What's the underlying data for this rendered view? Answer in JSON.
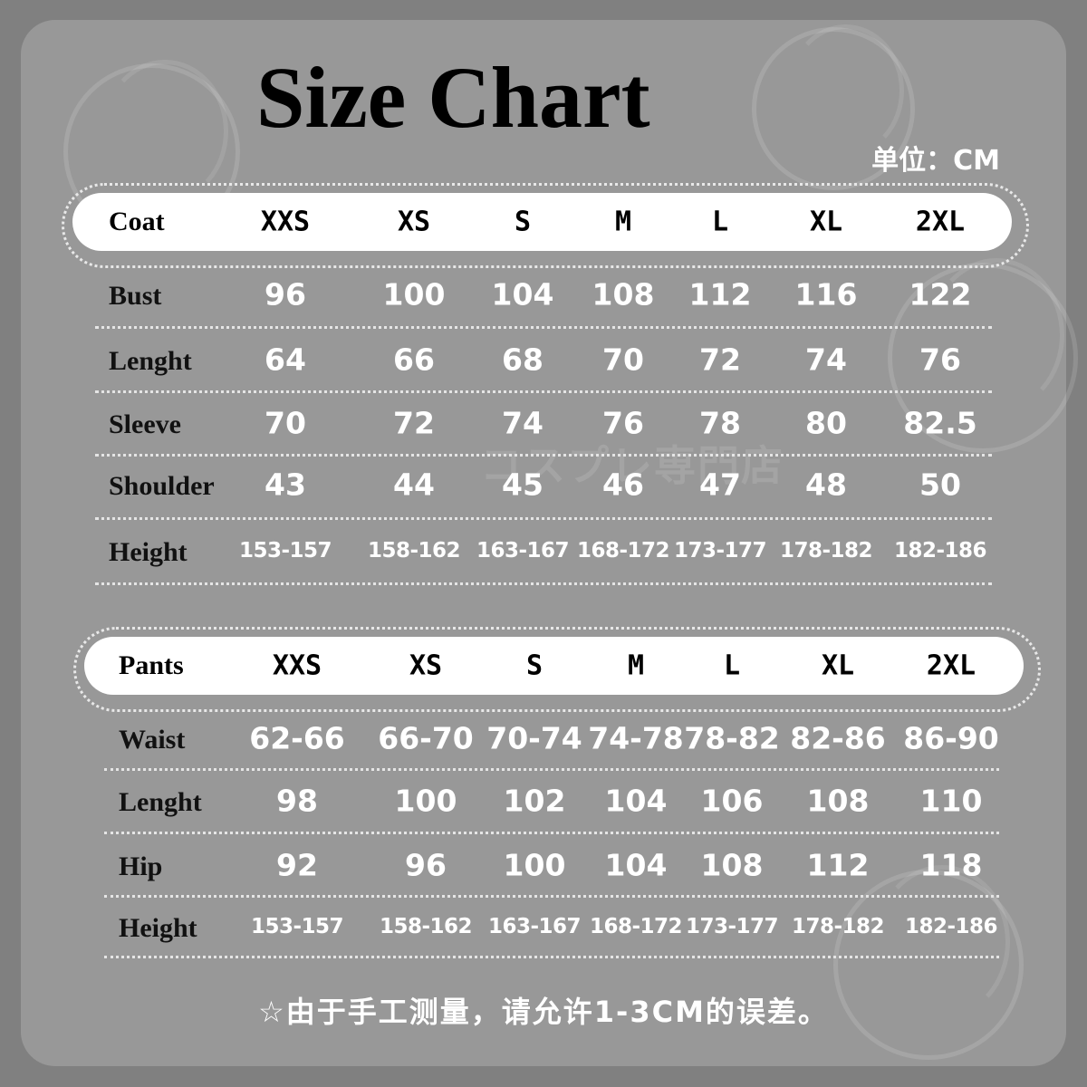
{
  "title": "Size Chart",
  "unit": "单位：CM",
  "watermark": "コスプレ専門店",
  "coat": {
    "header": "Coat",
    "sizes": [
      "XXS",
      "XS",
      "S",
      "M",
      "L",
      "XL",
      "2XL"
    ],
    "rows": [
      {
        "label": "Bust",
        "values": [
          "96",
          "100",
          "104",
          "108",
          "112",
          "116",
          "122"
        ]
      },
      {
        "label": "Lenght",
        "values": [
          "64",
          "66",
          "68",
          "70",
          "72",
          "74",
          "76"
        ]
      },
      {
        "label": "Sleeve",
        "values": [
          "70",
          "72",
          "74",
          "76",
          "78",
          "80",
          "82.5"
        ]
      },
      {
        "label": "Shoulder",
        "values": [
          "43",
          "44",
          "45",
          "46",
          "47",
          "48",
          "50"
        ]
      },
      {
        "label": "Height",
        "values": [
          "153-157",
          "158-162",
          "163-167",
          "168-172",
          "173-177",
          "178-182",
          "182-186"
        ]
      }
    ]
  },
  "pants": {
    "header": "Pants",
    "sizes": [
      "XXS",
      "XS",
      "S",
      "M",
      "L",
      "XL",
      "2XL"
    ],
    "rows": [
      {
        "label": "Waist",
        "values": [
          "62-66",
          "66-70",
          "70-74",
          "74-78",
          "78-82",
          "82-86",
          "86-90"
        ]
      },
      {
        "label": "Lenght",
        "values": [
          "98",
          "100",
          "102",
          "104",
          "106",
          "108",
          "110"
        ]
      },
      {
        "label": "Hip",
        "values": [
          "92",
          "96",
          "100",
          "104",
          "108",
          "112",
          "118"
        ]
      },
      {
        "label": "Height",
        "values": [
          "153-157",
          "158-162",
          "163-167",
          "168-172",
          "173-177",
          "178-182",
          "182-186"
        ]
      }
    ]
  },
  "footer_note": "☆由于手工测量，请允许1-3CM的误差。",
  "colors": {
    "background": "#808080",
    "card": "#989898",
    "header_pill": "#ffffff",
    "value_text": "#ffffff"
  }
}
